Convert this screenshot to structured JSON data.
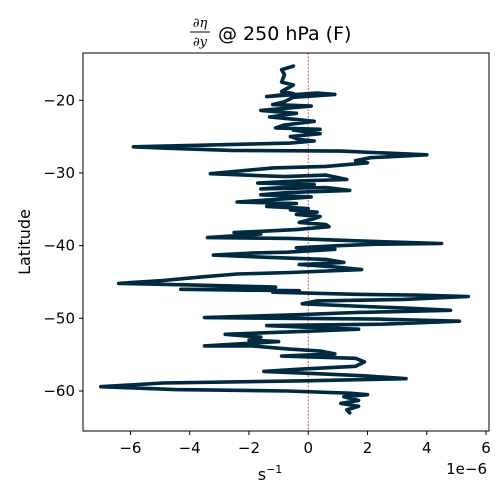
{
  "chart_data": {
    "type": "line",
    "title": {
      "numerator": "∂η",
      "denominator": "∂y",
      "suffix": "@ 250 hPa (F)"
    },
    "xlabel": "s",
    "xlabel_exponent": "−1",
    "ylabel": "Latitude",
    "x_offset_label": "1e−6",
    "x_scale": 1e-06,
    "xlim": [
      -7.6e-06,
      6.1e-06
    ],
    "ylim": [
      -65.5,
      -13.5
    ],
    "x_ticks": [
      -6e-06,
      -4e-06,
      -2e-06,
      0,
      2e-06,
      4e-06,
      6e-06
    ],
    "x_tick_labels": [
      "−6",
      "−4",
      "−2",
      "0",
      "2",
      "4",
      "6"
    ],
    "y_ticks": [
      -20,
      -30,
      -40,
      -50,
      -60
    ],
    "y_tick_labels": [
      "−20",
      "−30",
      "−40",
      "−50",
      "−60"
    ],
    "zero_line": {
      "x": 0,
      "color": "#d62728"
    },
    "series": [
      {
        "color": "#002a40",
        "points": [
          [
            -5e-07,
            -15.3
          ],
          [
            -9e-07,
            -15.8
          ],
          [
            -8e-07,
            -16.5
          ],
          [
            -9e-07,
            -17.5
          ],
          [
            -5e-07,
            -17.9
          ],
          [
            -9e-07,
            -18.8
          ],
          [
            -5e-07,
            -19.1
          ],
          [
            -1.4e-06,
            -19.5
          ],
          [
            3e-07,
            -19.0
          ],
          [
            9e-07,
            -19.2
          ],
          [
            -5e-07,
            -19.6
          ],
          [
            -8e-07,
            -20.2
          ],
          [
            -1.2e-06,
            -20.6
          ],
          [
            1e-07,
            -20.8
          ],
          [
            -1.6e-06,
            -21.4
          ],
          [
            -4e-07,
            -21.8
          ],
          [
            -1.3e-06,
            -22.3
          ],
          [
            -5e-07,
            -22.6
          ],
          [
            2e-07,
            -22.9
          ],
          [
            -8e-07,
            -23.4
          ],
          [
            -1.1e-06,
            -23.8
          ],
          [
            4e-07,
            -24.0
          ],
          [
            -5e-07,
            -24.1
          ],
          [
            4e-07,
            -24.6
          ],
          [
            -6e-07,
            -25.0
          ],
          [
            -3e-07,
            -25.4
          ],
          [
            2e-07,
            -25.6
          ],
          [
            -6e-07,
            -25.9
          ],
          [
            -5.9e-06,
            -26.4
          ],
          [
            -4.8e-06,
            -26.6
          ],
          [
            -2.6e-06,
            -26.9
          ],
          [
            1.1e-06,
            -27.0
          ],
          [
            4e-06,
            -27.5
          ],
          [
            2.1e-06,
            -27.9
          ],
          [
            1.6e-06,
            -28.3
          ],
          [
            2e-06,
            -28.6
          ],
          [
            6e-07,
            -29.1
          ],
          [
            -1.2e-06,
            -29.3
          ],
          [
            -3.3e-06,
            -30.1
          ],
          [
            -8e-07,
            -30.5
          ],
          [
            6e-07,
            -30.3
          ],
          [
            1.3e-06,
            -30.9
          ],
          [
            -3e-07,
            -31.1
          ],
          [
            -1.7e-06,
            -31.4
          ],
          [
            2e-07,
            -31.6
          ],
          [
            -5e-07,
            -31.9
          ],
          [
            -1.6e-06,
            -32.2
          ],
          [
            6e-07,
            -32.0
          ],
          [
            1.4e-06,
            -32.4
          ],
          [
            -7e-07,
            -32.7
          ],
          [
            -1.6e-06,
            -33.0
          ],
          [
            1e-07,
            -33.3
          ],
          [
            -9e-07,
            -33.6
          ],
          [
            -2.4e-06,
            -34.0
          ],
          [
            -4e-07,
            -34.2
          ],
          [
            -1.4e-06,
            -34.6
          ],
          [
            0.0,
            -34.9
          ],
          [
            -6e-07,
            -35.1
          ],
          [
            3e-07,
            -35.4
          ],
          [
            -4e-07,
            -35.7
          ],
          [
            4e-07,
            -36.0
          ],
          [
            2e-07,
            -36.3
          ],
          [
            -3e-07,
            -36.8
          ],
          [
            6e-07,
            -37.1
          ],
          [
            7e-07,
            -37.4
          ],
          [
            -4e-07,
            -37.8
          ],
          [
            -2.5e-06,
            -38.2
          ],
          [
            -1.6e-06,
            -38.4
          ],
          [
            -3.4e-06,
            -38.9
          ],
          [
            -6e-07,
            -39.0
          ],
          [
            2.1e-06,
            -39.4
          ],
          [
            4.5e-06,
            -39.7
          ],
          [
            2.3e-06,
            -39.8
          ],
          [
            1.1e-06,
            -40.0
          ],
          [
            -4e-07,
            -40.3
          ],
          [
            9e-07,
            -40.5
          ],
          [
            -7e-07,
            -40.9
          ],
          [
            -1.8e-06,
            -41.0
          ],
          [
            -3.2e-06,
            -41.3
          ],
          [
            -1.4e-06,
            -41.6
          ],
          [
            6e-07,
            -41.9
          ],
          [
            1.2e-06,
            -42.3
          ],
          [
            -3e-07,
            -42.6
          ],
          [
            8e-07,
            -42.9
          ],
          [
            1.8e-06,
            -43.3
          ],
          [
            -6e-07,
            -43.7
          ],
          [
            -2.4e-06,
            -43.9
          ],
          [
            -3.6e-06,
            -44.3
          ],
          [
            -4.9e-06,
            -44.8
          ],
          [
            -6.4e-06,
            -45.2
          ],
          [
            -4e-06,
            -45.4
          ],
          [
            -1.1e-06,
            -45.7
          ],
          [
            -2.1e-06,
            -45.9
          ],
          [
            -4.3e-06,
            -46.0
          ],
          [
            -2.7e-06,
            -46.1
          ],
          [
            -3e-07,
            -46.2
          ],
          [
            -1.2e-06,
            -46.4
          ],
          [
            1.6e-06,
            -46.7
          ],
          [
            3.6e-06,
            -46.8
          ],
          [
            5.4e-06,
            -47.0
          ],
          [
            3.2e-06,
            -47.4
          ],
          [
            3e-07,
            -47.6
          ],
          [
            -2e-07,
            -48.0
          ],
          [
            1.5e-06,
            -48.3
          ],
          [
            3.3e-06,
            -48.6
          ],
          [
            4.8e-06,
            -48.9
          ],
          [
            1.6e-06,
            -49.2
          ],
          [
            -3e-07,
            -49.5
          ],
          [
            -3.5e-06,
            -49.9
          ],
          [
            -8e-07,
            -50.0
          ],
          [
            2.4e-06,
            -50.1
          ],
          [
            5.1e-06,
            -50.4
          ],
          [
            2.6e-06,
            -50.8
          ],
          [
            -1.4e-06,
            -51.0
          ],
          [
            4e-07,
            -51.3
          ],
          [
            1.7e-06,
            -51.5
          ],
          [
            -2e-07,
            -51.8
          ],
          [
            -2.8e-06,
            -52.2
          ],
          [
            -1.6e-06,
            -52.6
          ],
          [
            -2e-06,
            -53.0
          ],
          [
            -1e-06,
            -53.2
          ],
          [
            -3.5e-06,
            -53.8
          ],
          [
            -1.9e-06,
            -53.8
          ],
          [
            -7e-07,
            -54.2
          ],
          [
            4e-07,
            -54.5
          ],
          [
            9e-07,
            -54.9
          ],
          [
            -9e-07,
            -55.2
          ],
          [
            1.6e-06,
            -55.5
          ],
          [
            1.9e-06,
            -56.0
          ],
          [
            1.6e-06,
            -56.6
          ],
          [
            -3e-07,
            -57.0
          ],
          [
            -1.5e-06,
            -57.3
          ],
          [
            2e-07,
            -57.6
          ],
          [
            1.9e-06,
            -57.9
          ],
          [
            3.3e-06,
            -58.3
          ],
          [
            -1e-07,
            -58.6
          ],
          [
            -4.9e-06,
            -58.9
          ],
          [
            -7e-06,
            -59.4
          ],
          [
            -4.5e-06,
            -59.8
          ],
          [
            -7e-07,
            -60.0
          ],
          [
            1.4e-06,
            -60.3
          ],
          [
            2e-06,
            -60.5
          ],
          [
            1.2e-06,
            -60.8
          ],
          [
            1.7e-06,
            -61.3
          ],
          [
            1.1e-06,
            -61.7
          ],
          [
            1.7e-06,
            -62.1
          ],
          [
            1.3e-06,
            -62.6
          ],
          [
            1.4e-06,
            -63.0
          ]
        ]
      }
    ]
  }
}
